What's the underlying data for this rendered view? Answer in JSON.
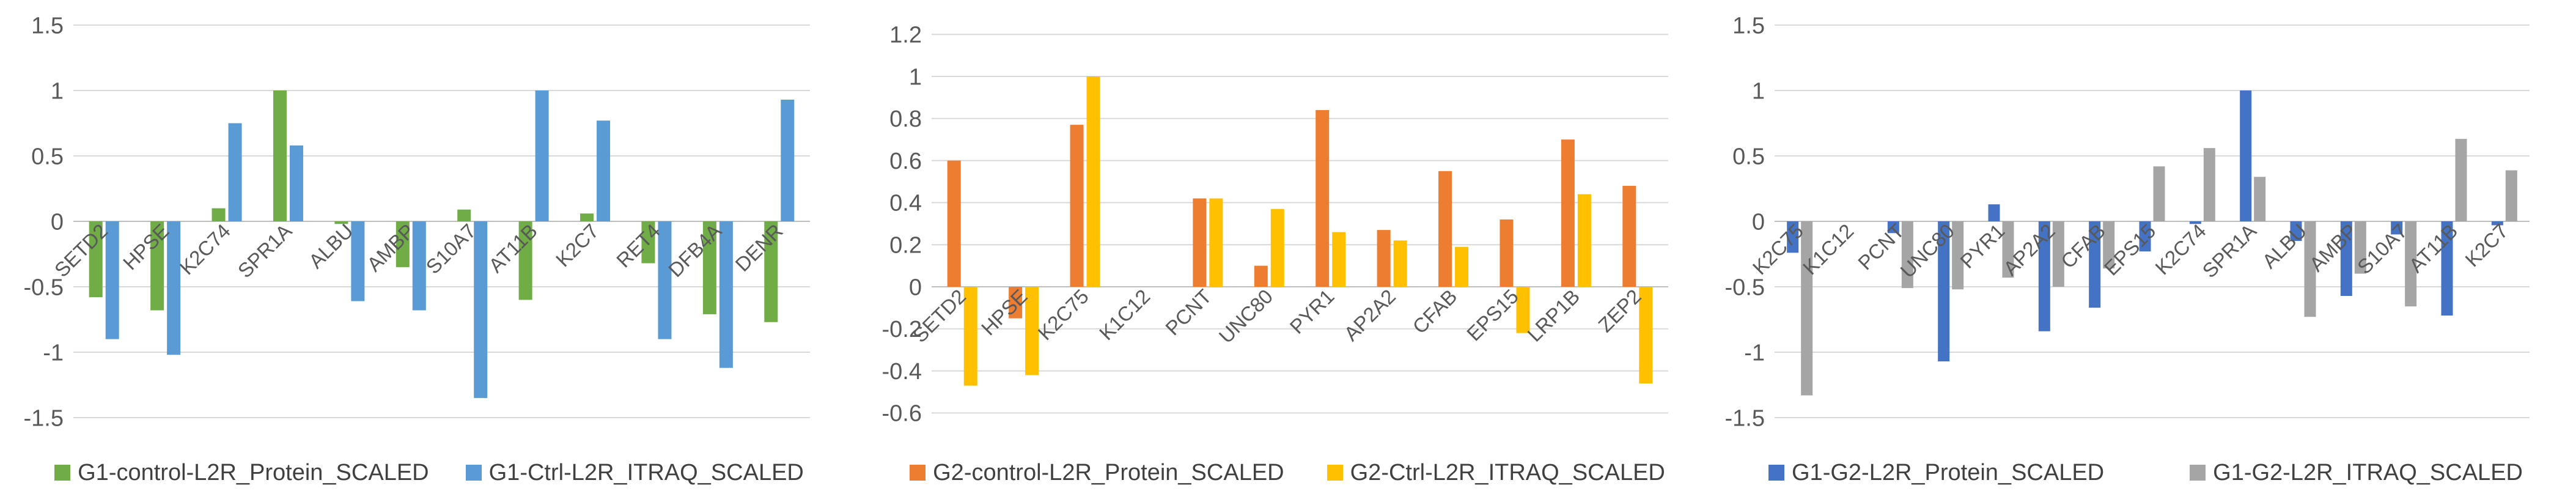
{
  "page": {
    "background": "#FFFFFF"
  },
  "styles": {
    "gridline": "#D9D9D9",
    "axis_line": "#BFBFBF",
    "tick_text": "#595959",
    "category_text": "#595959",
    "legend_text": "#404040"
  },
  "chart_data": [
    {
      "type": "bar",
      "title": "",
      "xlabel": "",
      "ylabel": "",
      "grid": true,
      "legend_position": "bottom",
      "ylim": [
        -1.5,
        1.5
      ],
      "yticks": [
        "1.5",
        "1",
        "0.5",
        "0",
        "-0.5",
        "-1",
        "-1.5"
      ],
      "categories": [
        "SETD2",
        "HPSE",
        "K2C74",
        "SPR1A",
        "ALBU",
        "AMBP",
        "S10A7",
        "AT11B",
        "K2C7",
        "RET4",
        "DFB4A",
        "DENR"
      ],
      "series": [
        {
          "name": "G1-control-L2R_Protein_SCALED",
          "color": "#70AD47",
          "values": [
            -0.58,
            -0.68,
            0.1,
            1.0,
            -0.02,
            -0.35,
            0.09,
            -0.6,
            0.06,
            -0.32,
            -0.71,
            -0.77
          ]
        },
        {
          "name": "G1-Ctrl-L2R_ITRAQ_SCALED",
          "color": "#5B9BD5",
          "values": [
            -0.9,
            -1.02,
            0.75,
            0.58,
            -0.61,
            -0.68,
            -1.35,
            1.0,
            0.77,
            -0.9,
            -1.12,
            0.93
          ]
        }
      ]
    },
    {
      "type": "bar",
      "title": "",
      "xlabel": "",
      "ylabel": "",
      "grid": true,
      "legend_position": "bottom",
      "ylim": [
        -0.6,
        1.2
      ],
      "yticks": [
        "1.2",
        "1",
        "0.8",
        "0.6",
        "0.4",
        "0.2",
        "0",
        "-0.2",
        "-0.4",
        "-0.6"
      ],
      "categories": [
        "SETD2",
        "HPSE",
        "K2C75",
        "K1C12",
        "PCNT",
        "UNC80",
        "PYR1",
        "AP2A2",
        "CFAB",
        "EPS15",
        "LRP1B",
        "ZEP2"
      ],
      "series": [
        {
          "name": "G2-control-L2R_Protein_SCALED",
          "color": "#ED7D31",
          "values": [
            0.6,
            -0.15,
            0.77,
            0,
            0.42,
            0.1,
            0.84,
            0.27,
            0.55,
            0.32,
            0.7,
            0.48
          ]
        },
        {
          "name": "G2-Ctrl-L2R_ITRAQ_SCALED",
          "color": "#FFC000",
          "values": [
            -0.47,
            -0.42,
            1.0,
            0,
            0.42,
            0.37,
            0.26,
            0.22,
            0.19,
            -0.22,
            0.44,
            -0.46
          ]
        }
      ]
    },
    {
      "type": "bar",
      "title": "",
      "xlabel": "",
      "ylabel": "",
      "grid": true,
      "legend_position": "bottom",
      "ylim": [
        -1.5,
        1.5
      ],
      "yticks": [
        "1.5",
        "1",
        "0.5",
        "0",
        "-0.5",
        "-1",
        "-1.5"
      ],
      "categories": [
        "K2C75",
        "K1C12",
        "PCNT",
        "UNC80",
        "PYR1",
        "AP2A2",
        "CFAB",
        "EPS15",
        "K2C74",
        "SPR1A",
        "ALBU",
        "AMBP",
        "S10A7",
        "AT11B",
        "K2C7"
      ],
      "series": [
        {
          "name": "G1-G2-L2R_Protein_SCALED",
          "color": "#4472C4",
          "values": [
            -0.24,
            0,
            -0.09,
            -1.07,
            0.13,
            -0.84,
            -0.66,
            -0.23,
            -0.02,
            1.0,
            -0.15,
            -0.57,
            -0.1,
            -0.72,
            -0.03
          ]
        },
        {
          "name": "G1-G2-L2R_ITRAQ_SCALED",
          "color": "#A5A5A5",
          "values": [
            -1.33,
            0,
            -0.51,
            -0.52,
            -0.43,
            -0.5,
            -0.36,
            0.42,
            0.56,
            0.34,
            -0.73,
            -0.4,
            -0.65,
            0.63,
            0.39
          ]
        }
      ]
    }
  ]
}
